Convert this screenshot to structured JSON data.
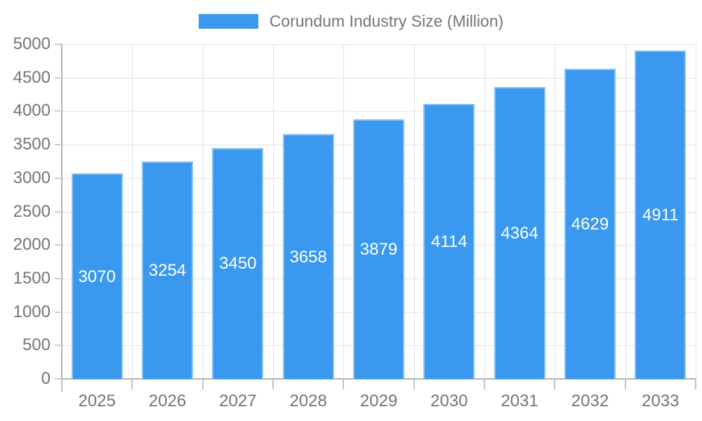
{
  "legend": {
    "swatch_color": "#3a99ee",
    "label": "Corundum Industry Size (Million)"
  },
  "chart_data": {
    "type": "bar",
    "title": "",
    "xlabel": "",
    "ylabel": "",
    "categories": [
      "2025",
      "2026",
      "2027",
      "2028",
      "2029",
      "2030",
      "2031",
      "2032",
      "2033"
    ],
    "series": [
      {
        "name": "Corundum Industry Size (Million)",
        "values": [
          3070,
          3254,
          3450,
          3658,
          3879,
          4114,
          4364,
          4629,
          4911
        ]
      }
    ],
    "ylim": [
      0,
      5000
    ],
    "ytick_step": 500,
    "ytick_labels": [
      "0",
      "500",
      "1000",
      "1500",
      "2000",
      "2500",
      "3000",
      "3500",
      "4000",
      "4500",
      "5000"
    ],
    "grid": true,
    "legend_position": "top-center",
    "bar_label_position": "center",
    "bar_label_color": "#ffffff"
  },
  "colors": {
    "bar": "#3a99ee",
    "bar_edge": "rgba(255,255,255,0.4)",
    "grid": "#e3e3e3",
    "axis": "#b3b3b3",
    "tick": "#c4c4c4",
    "text": "#757575",
    "background": "#ffffff"
  }
}
